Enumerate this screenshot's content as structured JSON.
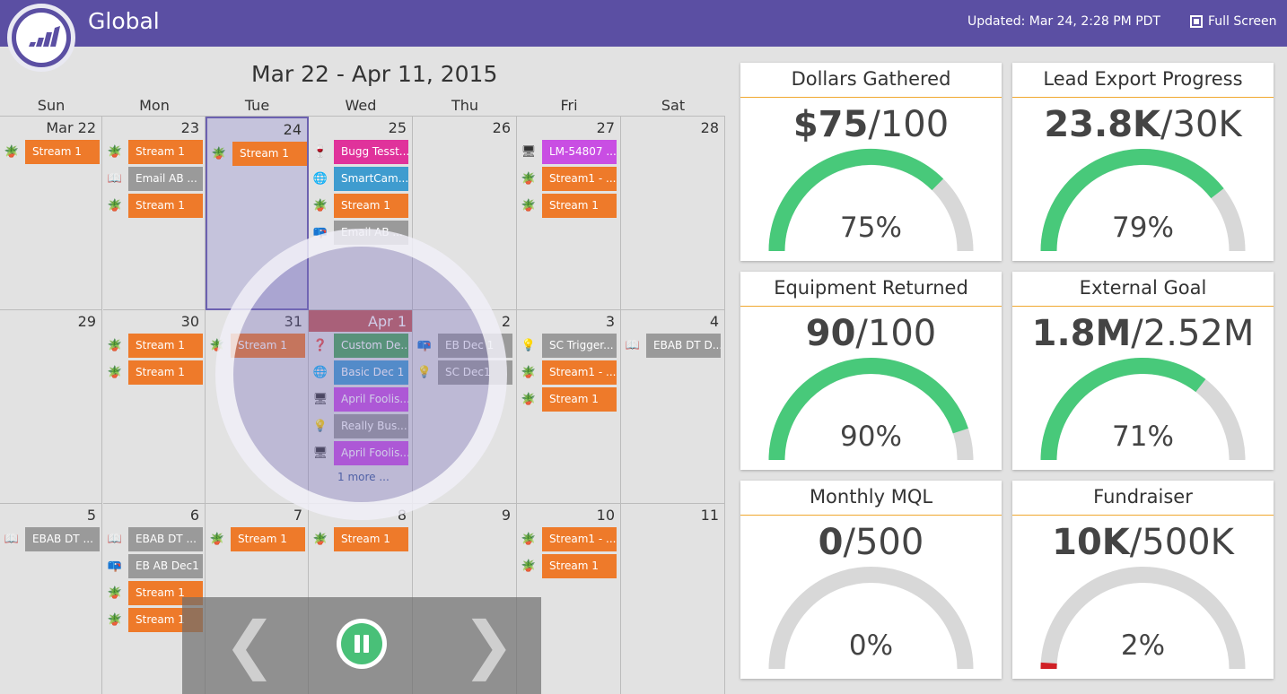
{
  "header": {
    "title": "Global",
    "updated": "Updated: Mar 24, 2:28 PM PDT",
    "fullscreen_label": "Full Screen"
  },
  "calendar": {
    "range": "Mar 22 - Apr 11, 2015",
    "weekdays": [
      "Sun",
      "Mon",
      "Tue",
      "Wed",
      "Thu",
      "Fri",
      "Sat"
    ],
    "weeks": [
      [
        {
          "num": "Mar 22",
          "events": [
            {
              "icon": "plant",
              "label": "Stream 1",
              "color": "orange"
            }
          ]
        },
        {
          "num": "23",
          "events": [
            {
              "icon": "plant",
              "label": "Stream 1",
              "color": "orange"
            },
            {
              "icon": "book",
              "label": "Email AB ...",
              "color": "gray"
            },
            {
              "icon": "plant",
              "label": "Stream 1",
              "color": "orange"
            }
          ]
        },
        {
          "num": "24",
          "selected": true,
          "events": [
            {
              "icon": "plant",
              "label": "Stream 1",
              "color": "orange"
            }
          ]
        },
        {
          "num": "25",
          "events": [
            {
              "icon": "wine",
              "label": "Bugg Tesst...",
              "color": "pink"
            },
            {
              "icon": "globe",
              "label": "SmartCam...",
              "color": "blue"
            },
            {
              "icon": "plant",
              "label": "Stream 1",
              "color": "orange"
            },
            {
              "icon": "mailbox",
              "label": "Email AB ...",
              "color": "gray"
            }
          ]
        },
        {
          "num": "26",
          "events": []
        },
        {
          "num": "27",
          "events": [
            {
              "icon": "monitor",
              "label": "LM-54807 ...",
              "color": "purple"
            },
            {
              "icon": "plant",
              "label": "Stream1 - ...",
              "color": "orange"
            },
            {
              "icon": "plant",
              "label": "Stream 1",
              "color": "orange"
            }
          ]
        },
        {
          "num": "28",
          "events": []
        }
      ],
      [
        {
          "num": "29",
          "events": []
        },
        {
          "num": "30",
          "events": [
            {
              "icon": "plant",
              "label": "Stream 1",
              "color": "orange"
            },
            {
              "icon": "plant",
              "label": "Stream 1",
              "color": "orange"
            }
          ]
        },
        {
          "num": "31",
          "events": [
            {
              "icon": "plant",
              "label": "Stream 1",
              "color": "orange"
            }
          ]
        },
        {
          "num": "Apr 1",
          "today": true,
          "events": [
            {
              "icon": "question",
              "label": "Custom De...",
              "color": "green"
            },
            {
              "icon": "globe",
              "label": "Basic Dec 1",
              "color": "blue"
            },
            {
              "icon": "monitor",
              "label": "April Foolis...",
              "color": "purple"
            },
            {
              "icon": "bulb",
              "label": "Really Bus...",
              "color": "gray"
            },
            {
              "icon": "monitor",
              "label": "April Foolis...",
              "color": "purple"
            }
          ],
          "more": "1 more ..."
        },
        {
          "num": "2",
          "events": [
            {
              "icon": "mailbox",
              "label": "EB Dec 1",
              "color": "gray"
            },
            {
              "icon": "bulb",
              "label": "SC Dec1",
              "color": "gray"
            }
          ]
        },
        {
          "num": "3",
          "events": [
            {
              "icon": "bulb",
              "label": "SC Trigger...",
              "color": "gray"
            },
            {
              "icon": "plant",
              "label": "Stream1 - ...",
              "color": "orange"
            },
            {
              "icon": "plant",
              "label": "Stream 1",
              "color": "orange"
            }
          ]
        },
        {
          "num": "4",
          "events": [
            {
              "icon": "book",
              "label": "EBAB DT D...",
              "color": "gray"
            }
          ]
        }
      ],
      [
        {
          "num": "5",
          "events": [
            {
              "icon": "book",
              "label": "EBAB DT ...",
              "color": "gray"
            }
          ]
        },
        {
          "num": "6",
          "events": [
            {
              "icon": "book",
              "label": "EBAB DT ...",
              "color": "gray"
            },
            {
              "icon": "mailbox",
              "label": "EB AB Dec1",
              "color": "gray"
            },
            {
              "icon": "plant",
              "label": "Stream 1",
              "color": "orange"
            },
            {
              "icon": "plant",
              "label": "Stream 1",
              "color": "orange"
            }
          ]
        },
        {
          "num": "7",
          "events": [
            {
              "icon": "plant",
              "label": "Stream 1",
              "color": "orange"
            }
          ]
        },
        {
          "num": "8",
          "events": [
            {
              "icon": "plant",
              "label": "Stream 1",
              "color": "orange"
            }
          ]
        },
        {
          "num": "9",
          "events": []
        },
        {
          "num": "10",
          "events": [
            {
              "icon": "plant",
              "label": "Stream1 - ...",
              "color": "orange"
            },
            {
              "icon": "plant",
              "label": "Stream 1",
              "color": "orange"
            }
          ]
        },
        {
          "num": "11",
          "events": []
        }
      ]
    ]
  },
  "colors": {
    "orange": "#ee7a2a",
    "gray": "#9a9a9a",
    "pink": "#e0329b",
    "blue": "#3f9ccf",
    "purple": "#c94ee3",
    "green": "#48a657",
    "gauge_fill": "#48c97a",
    "gauge_track": "#d8d8d8",
    "gauge_low": "#d02026",
    "header": "#5b4fa3"
  },
  "gauges": [
    {
      "title": "Dollars Gathered",
      "value_bold": "$75",
      "value_rest": "/100",
      "percent": "75%",
      "fraction": 0.75
    },
    {
      "title": "Lead Export Progress",
      "value_bold": "23.8K",
      "value_rest": "/30K",
      "percent": "79%",
      "fraction": 0.79
    },
    {
      "title": "Equipment Returned",
      "value_bold": "90",
      "value_rest": "/100",
      "percent": "90%",
      "fraction": 0.9
    },
    {
      "title": "External Goal",
      "value_bold": "1.8M",
      "value_rest": "/2.52M",
      "percent": "71%",
      "fraction": 0.71
    },
    {
      "title": "Monthly MQL",
      "value_bold": "0",
      "value_rest": "/500",
      "percent": "0%",
      "fraction": 0.0
    },
    {
      "title": "Fundraiser",
      "value_bold": "10K",
      "value_rest": "/500K",
      "percent": "2%",
      "fraction": 0.02
    }
  ]
}
